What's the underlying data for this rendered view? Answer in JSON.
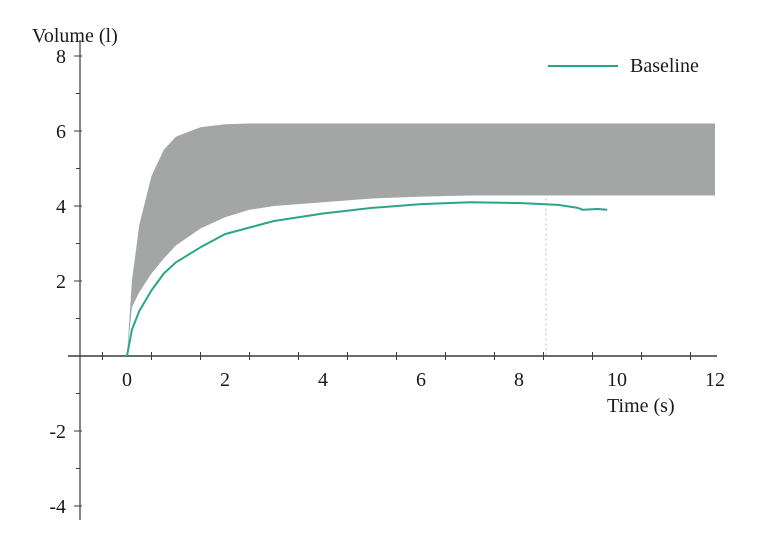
{
  "chart_data": {
    "type": "line",
    "title": "",
    "ylabel": "Volume (l)",
    "xlabel": "Time (s)",
    "xlim": [
      -1,
      12
    ],
    "ylim": [
      -4,
      8
    ],
    "x_ticks": [
      0,
      2,
      4,
      6,
      8,
      10,
      12
    ],
    "y_ticks": [
      -4,
      -2,
      2,
      4,
      6,
      8
    ],
    "grid": false,
    "legend_position": "top-right",
    "band": {
      "fill_color": "#a3a6a5",
      "x": [
        0,
        0.1,
        0.25,
        0.5,
        0.75,
        1,
        1.5,
        2,
        2.5,
        3,
        4,
        5,
        6,
        7,
        8,
        9,
        10,
        11,
        12
      ],
      "upper": [
        0,
        2.0,
        3.5,
        4.8,
        5.5,
        5.85,
        6.1,
        6.18,
        6.2,
        6.2,
        6.2,
        6.2,
        6.2,
        6.2,
        6.2,
        6.2,
        6.2,
        6.2,
        6.2
      ],
      "lower": [
        0,
        1.3,
        1.7,
        2.2,
        2.6,
        2.95,
        3.4,
        3.7,
        3.9,
        4.0,
        4.1,
        4.2,
        4.25,
        4.28,
        4.28,
        4.28,
        4.28,
        4.28,
        4.28
      ]
    },
    "series": [
      {
        "name": "Baseline",
        "color": "#2aa58a",
        "x": [
          0,
          0.1,
          0.25,
          0.5,
          0.75,
          1,
          1.5,
          2,
          3,
          4,
          5,
          6,
          7,
          8,
          8.8,
          9.2,
          9.3,
          9.6,
          9.8
        ],
        "y": [
          0,
          0.7,
          1.2,
          1.75,
          2.2,
          2.5,
          2.9,
          3.25,
          3.6,
          3.8,
          3.95,
          4.05,
          4.1,
          4.08,
          4.03,
          3.95,
          3.9,
          3.92,
          3.9
        ]
      }
    ]
  }
}
